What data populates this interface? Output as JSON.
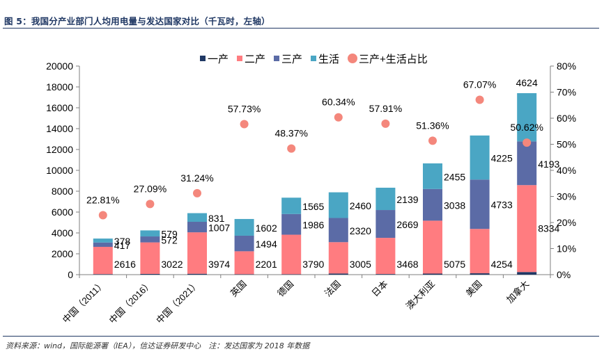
{
  "figure_title": "图 5：我国分产业部门人均用电量与发达国家对比（千瓦时，左轴）",
  "source_note": "资料来源：wind，国际能源署（IEA），信达证券研发中心　注：发达国家为 2018 年数据",
  "colors": {
    "primary": "#203864",
    "secondary": "#ff7c80",
    "tertiary": "#5b6ba6",
    "residential": "#4aa6c4",
    "ratio": "#f4877c",
    "title": "#1f3763"
  },
  "chart_data": {
    "type": "bar",
    "stacked": true,
    "categories": [
      "中国（2011）",
      "中国（2016）",
      "中国（2021）",
      "英国",
      "德国",
      "法国",
      "日本",
      "澳大利亚",
      "美国",
      "加拿大"
    ],
    "series": [
      {
        "name": "一产",
        "values": [
          50,
          70,
          85,
          40,
          40,
          110,
          60,
          100,
          130,
          250
        ]
      },
      {
        "name": "二产",
        "values": [
          2616,
          3022,
          3974,
          2201,
          3790,
          3005,
          3468,
          5075,
          4254,
          8334
        ]
      },
      {
        "name": "三产",
        "values": [
          417,
          572,
          1007,
          1494,
          1986,
          2320,
          2669,
          3038,
          4733,
          4193
        ]
      },
      {
        "name": "生活",
        "values": [
          378,
          579,
          831,
          1602,
          1565,
          2460,
          2139,
          2455,
          4225,
          4624
        ]
      }
    ],
    "bar_labels": {
      "二产": [
        "2616",
        "3022",
        "3974",
        "2201",
        "3790",
        "3005",
        "3468",
        "5075",
        "4254",
        "8334"
      ],
      "三产": [
        "417",
        "572",
        "1007",
        "1494",
        "1986",
        "2320",
        "2669",
        "3038",
        "4733",
        "4193"
      ],
      "生活": [
        "378",
        "579",
        "831",
        "1602",
        "1565",
        "2460",
        "2139",
        "2455",
        "4225",
        "4624"
      ]
    },
    "ratio_series": {
      "name": "三产+生活占比",
      "values": [
        22.81,
        27.09,
        31.24,
        57.73,
        48.37,
        60.34,
        57.91,
        51.36,
        67.07,
        50.62
      ],
      "labels": [
        "22.81%",
        "27.09%",
        "31.24%",
        "57.73%",
        "48.37%",
        "60.34%",
        "57.91%",
        "51.36%",
        "67.07%",
        "50.62%"
      ]
    },
    "ylim_left": [
      0,
      20000
    ],
    "yticks_left": [
      "0",
      "2000",
      "4000",
      "6000",
      "8000",
      "10000",
      "12000",
      "14000",
      "16000",
      "18000",
      "20000"
    ],
    "ylim_right": [
      0,
      80
    ],
    "yticks_right": [
      "0%",
      "10%",
      "20%",
      "30%",
      "40%",
      "50%",
      "60%",
      "70%",
      "80%"
    ],
    "legend_position": "top-center",
    "grid": false
  }
}
